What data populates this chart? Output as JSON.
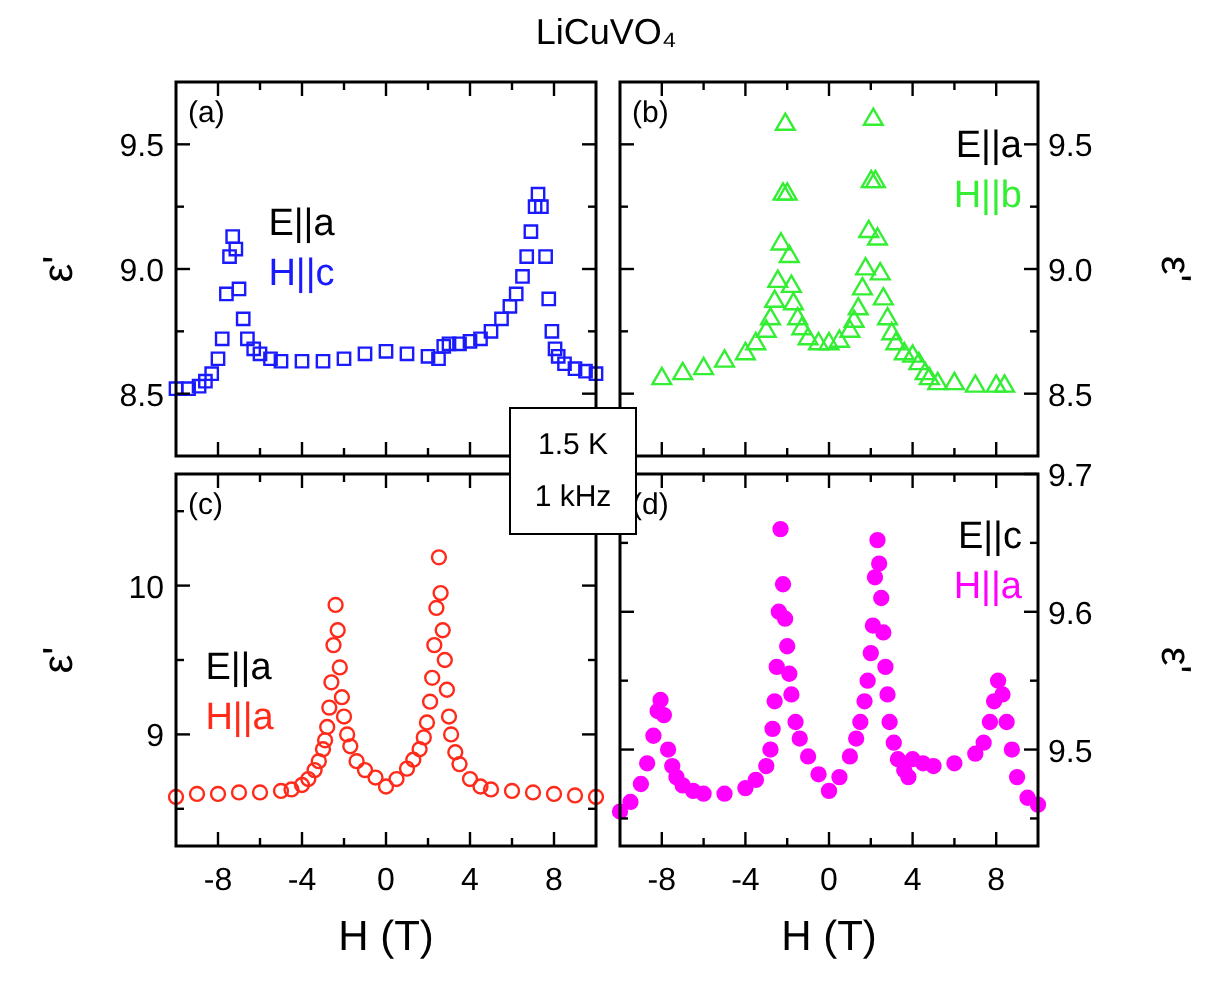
{
  "chart_data": [
    {
      "type": "scatter",
      "title": "LiCuVO₄",
      "ylabel": "ε'",
      "annotations": [
        "(a)",
        "E||a"
      ],
      "tick_labels": "y",
      "legend": "left",
      "marker": "square",
      "xlim": [
        -10,
        10
      ],
      "xticks": [
        -8,
        {
          "value": -6,
          "label": null
        },
        -4,
        {
          "value": -2,
          "label": null
        },
        0,
        {
          "value": 2,
          "label": null
        },
        4,
        {
          "value": 6,
          "label": null
        },
        8
      ],
      "ylim": [
        8.25,
        9.75
      ],
      "yticks": [
        8.5,
        {
          "value": 8.75,
          "label": null
        },
        {
          "value": 9,
          "label": "9.0"
        },
        {
          "value": 9.25,
          "label": null
        },
        9.5
      ],
      "x": [
        -10,
        -9.4,
        -8.9,
        -8.6,
        -8.3,
        -8,
        -7.8,
        -7.6,
        -7.45,
        -7.3,
        -7.15,
        -7,
        -6.8,
        -6.6,
        -6.3,
        -6,
        -5.5,
        -5,
        -4,
        -3,
        -2,
        -1,
        0,
        1,
        2,
        2.5,
        2.75,
        3,
        3.5,
        4,
        4.5,
        5,
        5.5,
        5.9,
        6.2,
        6.5,
        6.7,
        6.9,
        7.1,
        7.24,
        7.4,
        7.6,
        7.75,
        7.9,
        8.05,
        8.2,
        8.5,
        9,
        9.5,
        10
      ],
      "series": [
        {
          "name": "H||c",
          "color": "#1a1aff",
          "values": [
            8.52,
            8.52,
            8.53,
            8.55,
            8.58,
            8.64,
            8.72,
            8.9,
            9.05,
            9.13,
            9.08,
            8.92,
            8.8,
            8.72,
            8.68,
            8.66,
            8.64,
            8.63,
            8.63,
            8.63,
            8.64,
            8.66,
            8.67,
            8.66,
            8.65,
            8.64,
            8.69,
            8.7,
            8.7,
            8.71,
            8.72,
            8.75,
            8.8,
            8.85,
            8.9,
            8.97,
            9.05,
            9.15,
            9.25,
            9.3,
            9.25,
            9.05,
            8.88,
            8.75,
            8.68,
            8.65,
            8.62,
            8.6,
            8.59,
            8.58
          ]
        }
      ]
    },
    {
      "type": "scatter",
      "ylabel": "ε'",
      "annotations": [
        "(b)",
        "E||a"
      ],
      "tick_labels": "y",
      "legend": "top right",
      "marker": "triangle",
      "xlim": [
        -10,
        10
      ],
      "xticks": [
        -8,
        {
          "value": -6,
          "label": null
        },
        -4,
        {
          "value": -2,
          "label": null
        },
        0,
        {
          "value": 2,
          "label": null
        },
        4,
        {
          "value": 6,
          "label": null
        },
        8
      ],
      "ylim": [
        8.25,
        9.75
      ],
      "yticks": [
        8.5,
        {
          "value": 8.75,
          "label": null
        },
        {
          "value": 9,
          "label": "9.0"
        },
        {
          "value": 9.25,
          "label": null
        },
        9.5
      ],
      "x": [
        -8,
        -7,
        -6,
        -5,
        -4,
        -3.5,
        -3,
        -2.8,
        -2.6,
        -2.45,
        -2.3,
        -2.2,
        -2.09,
        -2,
        -1.9,
        -1.8,
        -1.7,
        -1.5,
        -1.3,
        -1,
        -0.5,
        0,
        0.5,
        1,
        1.2,
        1.4,
        1.6,
        1.75,
        1.9,
        2.02,
        2.12,
        2.22,
        2.32,
        2.45,
        2.6,
        2.8,
        3,
        3.2,
        3.6,
        4,
        4.3,
        4.6,
        4.8,
        5.2,
        6,
        7,
        8,
        8.4
      ],
      "series": [
        {
          "name": "H||b",
          "color": "#33ee33",
          "values": [
            8.56,
            8.58,
            8.6,
            8.63,
            8.66,
            8.7,
            8.75,
            8.8,
            8.87,
            8.95,
            9.1,
            9.3,
            9.58,
            9.3,
            9.05,
            8.93,
            8.86,
            8.8,
            8.76,
            8.72,
            8.7,
            8.7,
            8.71,
            8.75,
            8.79,
            8.84,
            8.92,
            9.0,
            9.15,
            9.35,
            9.6,
            9.35,
            9.12,
            8.98,
            8.88,
            8.8,
            8.74,
            8.7,
            8.66,
            8.65,
            8.62,
            8.58,
            8.56,
            8.54,
            8.54,
            8.53,
            8.53,
            8.53
          ]
        }
      ]
    },
    {
      "type": "scatter",
      "ylabel": "ε'",
      "xlabel": "H (T)",
      "annotations": [
        "(c)",
        "E||a"
      ],
      "legend": "bottom left",
      "marker": "circle",
      "xlim": [
        -10,
        10
      ],
      "xticks": [
        -8,
        {
          "value": -6,
          "label": null
        },
        -4,
        {
          "value": -2,
          "label": null
        },
        0,
        {
          "value": 2,
          "label": null
        },
        4,
        {
          "value": 6,
          "label": null
        },
        8
      ],
      "ylim": [
        8.25,
        10.75
      ],
      "yticks": [
        {
          "value": 8.5,
          "label": null
        },
        9,
        {
          "value": 9.5,
          "label": null
        },
        10,
        {
          "value": 10.5,
          "label": null
        }
      ],
      "x": [
        -10,
        -9,
        -8,
        -7,
        -6,
        -5,
        -4.5,
        -4,
        -3.7,
        -3.4,
        -3.2,
        -3,
        -2.9,
        -2.8,
        -2.7,
        -2.6,
        -2.5,
        -2.4,
        -2.3,
        -2.2,
        -2.1,
        -2,
        -1.85,
        -1.7,
        -1.4,
        -1,
        -0.5,
        0,
        0.5,
        1,
        1.3,
        1.6,
        1.8,
        1.95,
        2.1,
        2.2,
        2.3,
        2.4,
        2.52,
        2.6,
        2.7,
        2.8,
        2.9,
        3,
        3.1,
        3.3,
        3.5,
        4,
        4.5,
        5,
        6,
        7,
        8,
        9,
        10
      ],
      "series": [
        {
          "name": "H||a",
          "color": "#ff2a1a",
          "values": [
            8.58,
            8.6,
            8.6,
            8.61,
            8.61,
            8.62,
            8.63,
            8.66,
            8.7,
            8.76,
            8.82,
            8.9,
            8.96,
            9.05,
            9.18,
            9.35,
            9.6,
            9.87,
            9.7,
            9.45,
            9.25,
            9.12,
            9.0,
            8.92,
            8.82,
            8.76,
            8.71,
            8.65,
            8.7,
            8.77,
            8.83,
            8.9,
            8.98,
            9.08,
            9.22,
            9.38,
            9.6,
            9.85,
            10.19,
            9.95,
            9.7,
            9.5,
            9.3,
            9.12,
            9.0,
            8.88,
            8.8,
            8.7,
            8.65,
            8.63,
            8.62,
            8.61,
            8.6,
            8.59,
            8.58
          ]
        }
      ]
    },
    {
      "type": "scatter",
      "ylabel": "ε'",
      "xlabel": "H (T)",
      "annotations": [
        "(d)",
        "E||c"
      ],
      "legend": "top right",
      "marker": "circle",
      "xlim": [
        -10,
        10
      ],
      "xticks": [
        -8,
        {
          "value": -6,
          "label": null
        },
        -4,
        {
          "value": -2,
          "label": null
        },
        0,
        {
          "value": 2,
          "label": null
        },
        4,
        {
          "value": 6,
          "label": null
        },
        8
      ],
      "ylim": [
        9.43,
        9.7
      ],
      "yticks": [
        {
          "value": 9.45,
          "label": null
        },
        9.5,
        {
          "value": 9.55,
          "label": null
        },
        9.6,
        {
          "value": 9.65,
          "label": null
        },
        9.7
      ],
      "x": [
        -10,
        -9.5,
        -9,
        -8.7,
        -8.4,
        -8.2,
        -8.06,
        -7.9,
        -7.7,
        -7.5,
        -7.3,
        -7,
        -6.5,
        -6,
        -5,
        -4,
        -3.5,
        -3,
        -2.8,
        -2.7,
        -2.6,
        -2.5,
        -2.4,
        -2.32,
        -2.2,
        -2.1,
        -2,
        -1.9,
        -1.8,
        -1.6,
        -1.4,
        -1,
        -0.5,
        0,
        0.5,
        1,
        1.3,
        1.5,
        1.7,
        1.85,
        2,
        2.1,
        2.2,
        2.32,
        2.4,
        2.5,
        2.6,
        2.7,
        2.8,
        2.9,
        3.1,
        3.3,
        3.6,
        3.8,
        4,
        4.5,
        5,
        6,
        7,
        7.4,
        7.7,
        7.9,
        8.09,
        8.3,
        8.5,
        8.75,
        9,
        9.5,
        10
      ],
      "series": [
        {
          "name": "H||a",
          "color": "#ff00ff",
          "values": [
            9.455,
            9.462,
            9.475,
            9.49,
            9.51,
            9.528,
            9.536,
            9.525,
            9.5,
            9.488,
            9.48,
            9.474,
            9.47,
            9.468,
            9.468,
            9.472,
            9.478,
            9.488,
            9.5,
            9.515,
            9.535,
            9.56,
            9.6,
            9.66,
            9.62,
            9.595,
            9.575,
            9.555,
            9.54,
            9.52,
            9.508,
            9.495,
            9.482,
            9.47,
            9.48,
            9.495,
            9.508,
            9.52,
            9.535,
            9.55,
            9.57,
            9.59,
            9.625,
            9.652,
            9.635,
            9.61,
            9.585,
            9.56,
            9.54,
            9.52,
            9.505,
            9.493,
            9.485,
            9.48,
            9.493,
            9.49,
            9.488,
            9.49,
            9.497,
            9.505,
            9.52,
            9.535,
            9.55,
            9.54,
            9.52,
            9.5,
            9.48,
            9.465,
            9.46
          ]
        }
      ]
    },
    {
      "type": "other",
      "annotations": [
        "1.5 K",
        "1 kHz"
      ]
    }
  ]
}
